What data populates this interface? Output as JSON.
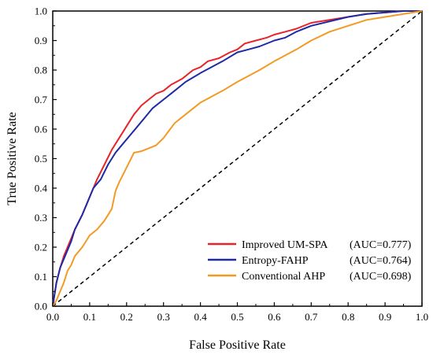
{
  "chart_data": {
    "type": "line",
    "xlabel": "False Positive Rate",
    "ylabel": "True Positive Rate",
    "xlim": [
      0.0,
      1.0
    ],
    "ylim": [
      0.0,
      1.0
    ],
    "xticks": [
      "0.0",
      "0.1",
      "0.2",
      "0.3",
      "0.4",
      "0.5",
      "0.6",
      "0.7",
      "0.8",
      "0.9",
      "1.0"
    ],
    "yticks": [
      "0.0",
      "0.1",
      "0.2",
      "0.3",
      "0.4",
      "0.5",
      "0.6",
      "0.7",
      "0.8",
      "0.9",
      "1.0"
    ],
    "grid": false,
    "legend_position": "bottom-right",
    "series": [
      {
        "name": "Improved UM-SPA",
        "auc_label": "(AUC=0.777)",
        "color": "#e8242b",
        "x": [
          0,
          0.005,
          0.01,
          0.02,
          0.03,
          0.04,
          0.05,
          0.06,
          0.08,
          0.1,
          0.12,
          0.14,
          0.16,
          0.18,
          0.2,
          0.22,
          0.24,
          0.26,
          0.28,
          0.3,
          0.32,
          0.35,
          0.38,
          0.4,
          0.42,
          0.45,
          0.48,
          0.5,
          0.52,
          0.55,
          0.58,
          0.6,
          0.63,
          0.66,
          0.7,
          0.75,
          0.8,
          0.85,
          0.9,
          0.95,
          1.0
        ],
        "y": [
          0,
          0.04,
          0.08,
          0.13,
          0.17,
          0.2,
          0.23,
          0.26,
          0.31,
          0.37,
          0.43,
          0.48,
          0.53,
          0.57,
          0.61,
          0.65,
          0.68,
          0.7,
          0.72,
          0.73,
          0.75,
          0.77,
          0.8,
          0.81,
          0.83,
          0.84,
          0.86,
          0.87,
          0.89,
          0.9,
          0.91,
          0.92,
          0.93,
          0.94,
          0.96,
          0.97,
          0.98,
          0.99,
          0.995,
          1.0,
          1.0
        ]
      },
      {
        "name": "Entropy-FAHP",
        "auc_label": "(AUC=0.764)",
        "color": "#1f2aa6",
        "x": [
          0,
          0.005,
          0.01,
          0.02,
          0.03,
          0.04,
          0.05,
          0.06,
          0.08,
          0.1,
          0.11,
          0.13,
          0.15,
          0.17,
          0.19,
          0.21,
          0.23,
          0.25,
          0.27,
          0.3,
          0.33,
          0.36,
          0.4,
          0.43,
          0.46,
          0.5,
          0.53,
          0.56,
          0.6,
          0.63,
          0.66,
          0.7,
          0.75,
          0.8,
          0.85,
          0.9,
          0.95,
          1.0
        ],
        "y": [
          0,
          0.04,
          0.08,
          0.13,
          0.16,
          0.19,
          0.22,
          0.26,
          0.31,
          0.37,
          0.4,
          0.43,
          0.48,
          0.52,
          0.55,
          0.58,
          0.61,
          0.64,
          0.67,
          0.7,
          0.73,
          0.76,
          0.79,
          0.81,
          0.83,
          0.86,
          0.87,
          0.88,
          0.9,
          0.91,
          0.93,
          0.95,
          0.965,
          0.98,
          0.99,
          0.995,
          1.0,
          1.0
        ]
      },
      {
        "name": "Conventional AHP",
        "auc_label": "(AUC=0.698)",
        "color": "#f39a24",
        "x": [
          0,
          0.01,
          0.02,
          0.03,
          0.04,
          0.05,
          0.06,
          0.08,
          0.1,
          0.12,
          0.14,
          0.16,
          0.17,
          0.18,
          0.2,
          0.22,
          0.24,
          0.26,
          0.28,
          0.3,
          0.33,
          0.36,
          0.4,
          0.43,
          0.46,
          0.5,
          0.53,
          0.56,
          0.6,
          0.63,
          0.66,
          0.7,
          0.75,
          0.8,
          0.85,
          0.9,
          0.95,
          1.0
        ],
        "y": [
          0,
          0.02,
          0.05,
          0.08,
          0.12,
          0.14,
          0.17,
          0.2,
          0.24,
          0.26,
          0.29,
          0.33,
          0.39,
          0.42,
          0.47,
          0.52,
          0.525,
          0.535,
          0.545,
          0.57,
          0.62,
          0.65,
          0.69,
          0.71,
          0.73,
          0.76,
          0.78,
          0.8,
          0.83,
          0.85,
          0.87,
          0.9,
          0.93,
          0.95,
          0.97,
          0.98,
          0.99,
          1.0
        ]
      }
    ],
    "reference_line": {
      "x": [
        0,
        1
      ],
      "y": [
        0,
        1
      ],
      "style": "dashed",
      "color": "#000000"
    }
  }
}
